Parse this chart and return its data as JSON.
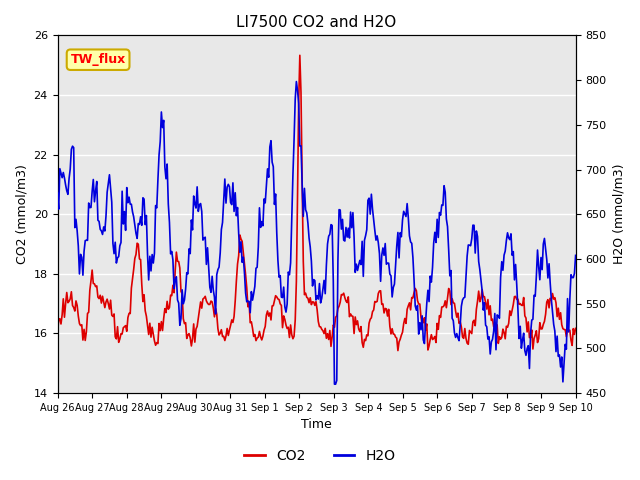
{
  "title": "LI7500 CO2 and H2O",
  "xlabel": "Time",
  "ylabel_left": "CO2 (mmol/m3)",
  "ylabel_right": "H2O (mmol/m3)",
  "ylim_left": [
    14,
    26
  ],
  "ylim_right": [
    450,
    850
  ],
  "yticks_left": [
    14,
    16,
    18,
    20,
    22,
    24,
    26
  ],
  "yticks_right": [
    450,
    500,
    550,
    600,
    650,
    700,
    750,
    800,
    850
  ],
  "xtick_labels": [
    "Aug 26",
    "Aug 27",
    "Aug 28",
    "Aug 29",
    "Aug 30",
    "Aug 31",
    "Sep 1",
    "Sep 2",
    "Sep 3",
    "Sep 4",
    "Sep 5",
    "Sep 6",
    "Sep 7",
    "Sep 8",
    "Sep 9",
    "Sep 10"
  ],
  "co2_color": "#DD0000",
  "h2o_color": "#0000DD",
  "plot_bg_color": "#E8E8E8",
  "annotation_text": "TW_flux",
  "annotation_bg": "#FFFFAA",
  "annotation_border": "#CCAA00",
  "line_width": 1.2,
  "title_fontsize": 11,
  "figsize": [
    6.4,
    4.8
  ],
  "dpi": 100
}
